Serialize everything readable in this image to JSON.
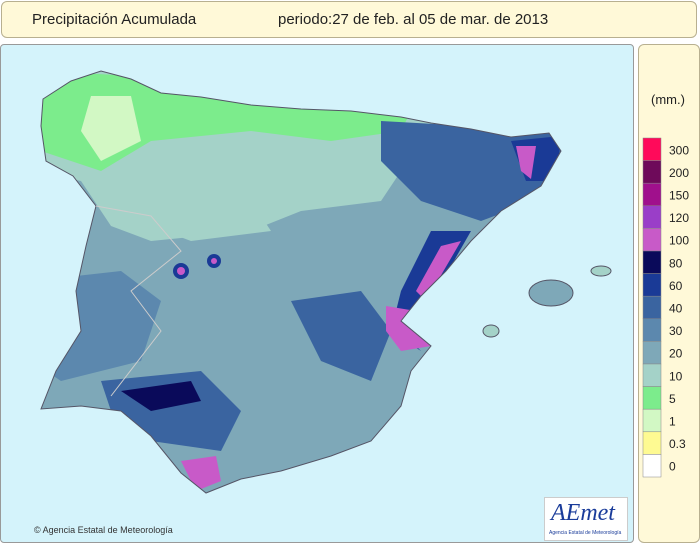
{
  "header": {
    "title": "Precipitación Acumulada",
    "period": "periodo:27 de feb. al 05 de mar. de 2013"
  },
  "legend": {
    "unit": "(mm.)",
    "items": [
      {
        "label": "300",
        "color": "#ff0a5a"
      },
      {
        "label": "200",
        "color": "#6e0a5a"
      },
      {
        "label": "150",
        "color": "#a0108c"
      },
      {
        "label": "120",
        "color": "#9a3ec8"
      },
      {
        "label": "100",
        "color": "#c85ac8"
      },
      {
        "label": "80",
        "color": "#0a0a5a"
      },
      {
        "label": "60",
        "color": "#1a3a96"
      },
      {
        "label": "40",
        "color": "#3a64a0"
      },
      {
        "label": "30",
        "color": "#5c88ae"
      },
      {
        "label": "20",
        "color": "#7ea8b8"
      },
      {
        "label": "10",
        "color": "#a4d2c8"
      },
      {
        "label": "5",
        "color": "#7cec8c"
      },
      {
        "label": "1",
        "color": "#d2f8c4"
      },
      {
        "label": "0.3",
        "color": "#fefa92"
      },
      {
        "label": "0",
        "color": "#ffffff"
      }
    ]
  },
  "footer": {
    "credit": "© Agencia Estatal de Meteorología"
  },
  "logo": {
    "name": "AEmet",
    "subtitle": "Agencia Estatal de Meteorología"
  }
}
